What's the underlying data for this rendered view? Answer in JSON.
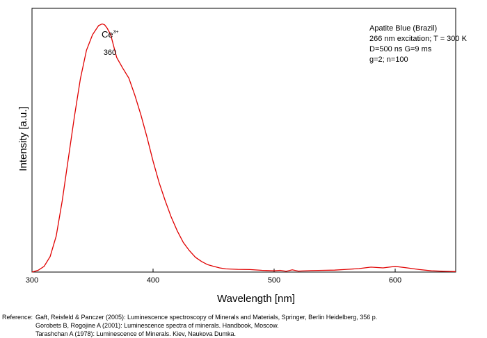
{
  "chart_data": {
    "type": "line",
    "xlabel": "Wavelength [nm]",
    "ylabel": "Intensity [a.u.]",
    "xlim": [
      300,
      650
    ],
    "ylim": [
      0,
      1.07
    ],
    "xticks": [
      300,
      400,
      500,
      600
    ],
    "y_tick_labels": false,
    "grid": false,
    "legend": "none",
    "line_color": "#e00000",
    "annotations": {
      "ion": "Ce",
      "ion_charge": "3+",
      "peak_label": "360",
      "peak_x": 360,
      "sample_info": [
        "Apatite Blue (Brazil)",
        "266 nm excitation; T = 300 K",
        "D=500 ns G=9 ms",
        "g=2; n=100"
      ]
    },
    "series": [
      {
        "x": [
          300,
          305,
          310,
          315,
          320,
          325,
          330,
          335,
          340,
          345,
          350,
          355,
          358,
          360,
          362,
          365,
          368,
          370,
          375,
          380,
          385,
          390,
          395,
          400,
          405,
          410,
          415,
          420,
          425,
          430,
          435,
          440,
          445,
          450,
          455,
          460,
          470,
          480,
          490,
          500,
          505,
          510,
          515,
          520,
          530,
          540,
          550,
          560,
          570,
          580,
          590,
          600,
          610,
          620,
          630,
          640,
          650
        ],
        "y": [
          0.0,
          0.007,
          0.023,
          0.063,
          0.146,
          0.29,
          0.46,
          0.63,
          0.785,
          0.9,
          0.963,
          1.0,
          1.007,
          1.003,
          0.99,
          0.963,
          0.907,
          0.87,
          0.827,
          0.787,
          0.717,
          0.637,
          0.547,
          0.45,
          0.363,
          0.29,
          0.223,
          0.167,
          0.12,
          0.087,
          0.06,
          0.043,
          0.03,
          0.023,
          0.017,
          0.013,
          0.011,
          0.01,
          0.007,
          0.005,
          0.007,
          0.003,
          0.009,
          0.004,
          0.006,
          0.007,
          0.008,
          0.011,
          0.014,
          0.02,
          0.017,
          0.023,
          0.017,
          0.01,
          0.005,
          0.003,
          0.002
        ]
      }
    ]
  },
  "references": {
    "prefix": "Reference:",
    "items": [
      "Gaft, Reisfeld & Panczer (2005): Luminescence spectroscopy of Minerals and Materials, Springer, Berlin Heidelberg, 356 p.",
      "Gorobets B, Rogojine A (2001): Luminescence spectra of minerals. Handbook, Moscow.",
      "Tarashchan A (1978): Luminescence of Minerals. Kiev, Naukova Dumka."
    ]
  }
}
